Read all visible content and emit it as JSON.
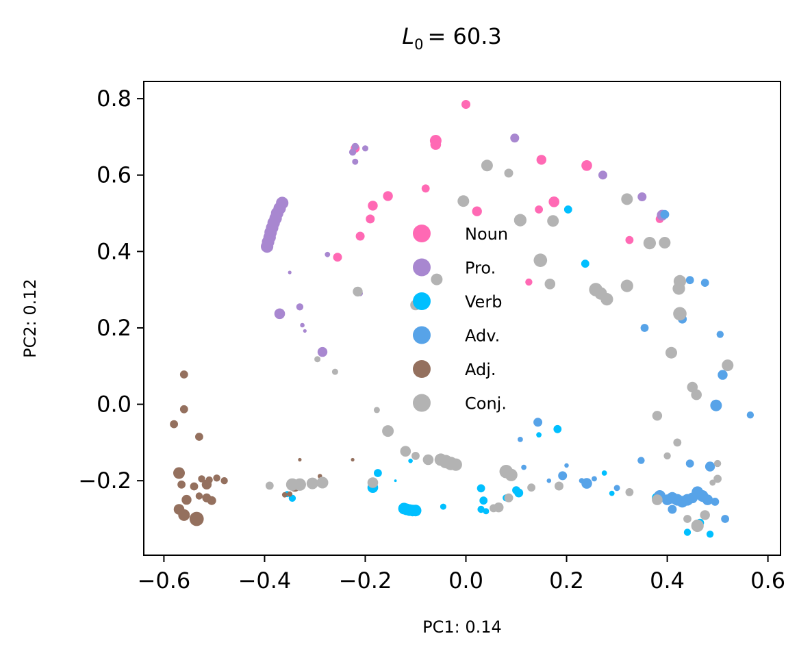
{
  "chart_data": {
    "type": "scatter",
    "title_prefix": "L",
    "title_subscript": "0",
    "title_value": "= 60.3",
    "xlabel": "PC1: 0.14",
    "ylabel": "PC2: 0.12",
    "xlim": [
      -0.64,
      0.625
    ],
    "ylim": [
      -0.395,
      0.845
    ],
    "xticks": [
      -0.6,
      -0.4,
      -0.2,
      0.0,
      0.2,
      0.4,
      0.6
    ],
    "yticks": [
      -0.2,
      0.0,
      0.2,
      0.4,
      0.6,
      0.8
    ],
    "xtick_labels": [
      "−0.6",
      "−0.4",
      "−0.2",
      "0.0",
      "0.2",
      "0.4",
      "0.6"
    ],
    "ytick_labels": [
      "−0.2",
      "0.0",
      "0.2",
      "0.4",
      "0.6",
      "0.8"
    ],
    "grid": false,
    "legend_position": "center",
    "series": [
      {
        "name": "Noun",
        "color": "#ff69b4",
        "points": [
          {
            "x": 0.0,
            "y": 0.785,
            "s": 1
          },
          {
            "x": -0.06,
            "y": 0.69,
            "s": 1.3
          },
          {
            "x": -0.06,
            "y": 0.68,
            "s": 1.2
          },
          {
            "x": -0.22,
            "y": 0.67,
            "s": 1
          },
          {
            "x": -0.08,
            "y": 0.565,
            "s": 0.9
          },
          {
            "x": 0.15,
            "y": 0.64,
            "s": 1.1
          },
          {
            "x": 0.24,
            "y": 0.625,
            "s": 1.2
          },
          {
            "x": -0.155,
            "y": 0.545,
            "s": 1.1
          },
          {
            "x": -0.185,
            "y": 0.52,
            "s": 1.1
          },
          {
            "x": -0.19,
            "y": 0.485,
            "s": 1
          },
          {
            "x": 0.022,
            "y": 0.505,
            "s": 1.1
          },
          {
            "x": 0.175,
            "y": 0.53,
            "s": 1.2
          },
          {
            "x": 0.145,
            "y": 0.51,
            "s": 0.9
          },
          {
            "x": -0.21,
            "y": 0.44,
            "s": 1
          },
          {
            "x": -0.255,
            "y": 0.385,
            "s": 1
          },
          {
            "x": 0.325,
            "y": 0.43,
            "s": 0.9
          },
          {
            "x": 0.385,
            "y": 0.485,
            "s": 0.9
          },
          {
            "x": 0.125,
            "y": 0.32,
            "s": 0.8
          }
        ]
      },
      {
        "name": "Pro.",
        "color": "#a887d0",
        "points": [
          {
            "x": 0.097,
            "y": 0.697,
            "s": 1
          },
          {
            "x": 0.272,
            "y": 0.6,
            "s": 1
          },
          {
            "x": 0.35,
            "y": 0.543,
            "s": 1
          },
          {
            "x": 0.39,
            "y": 0.495,
            "s": 1.2
          },
          {
            "x": -0.22,
            "y": 0.675,
            "s": 0.8
          },
          {
            "x": -0.2,
            "y": 0.67,
            "s": 0.7
          },
          {
            "x": -0.225,
            "y": 0.66,
            "s": 0.8
          },
          {
            "x": -0.22,
            "y": 0.635,
            "s": 0.7
          },
          {
            "x": -0.365,
            "y": 0.527,
            "s": 1.4
          },
          {
            "x": -0.37,
            "y": 0.513,
            "s": 1.4
          },
          {
            "x": -0.375,
            "y": 0.5,
            "s": 1.4
          },
          {
            "x": -0.378,
            "y": 0.487,
            "s": 1.4
          },
          {
            "x": -0.382,
            "y": 0.475,
            "s": 1.4
          },
          {
            "x": -0.385,
            "y": 0.462,
            "s": 1.4
          },
          {
            "x": -0.388,
            "y": 0.45,
            "s": 1.4
          },
          {
            "x": -0.39,
            "y": 0.437,
            "s": 1.4
          },
          {
            "x": -0.393,
            "y": 0.425,
            "s": 1.4
          },
          {
            "x": -0.395,
            "y": 0.413,
            "s": 1.4
          },
          {
            "x": -0.275,
            "y": 0.392,
            "s": 0.6
          },
          {
            "x": -0.35,
            "y": 0.345,
            "s": 0.4
          },
          {
            "x": -0.33,
            "y": 0.255,
            "s": 0.8
          },
          {
            "x": -0.37,
            "y": 0.237,
            "s": 1.2
          },
          {
            "x": -0.325,
            "y": 0.207,
            "s": 0.5
          },
          {
            "x": -0.32,
            "y": 0.192,
            "s": 0.4
          },
          {
            "x": -0.285,
            "y": 0.137,
            "s": 1.1
          },
          {
            "x": -0.21,
            "y": 0.29,
            "s": 0.6
          }
        ]
      },
      {
        "name": "Verb",
        "color": "#00bfff",
        "points": [
          {
            "x": 0.203,
            "y": 0.51,
            "s": 0.9
          },
          {
            "x": 0.237,
            "y": 0.368,
            "s": 0.9
          },
          {
            "x": -0.123,
            "y": -0.273,
            "s": 1.3
          },
          {
            "x": -0.118,
            "y": -0.275,
            "s": 1.3
          },
          {
            "x": -0.112,
            "y": -0.277,
            "s": 1.3
          },
          {
            "x": -0.106,
            "y": -0.278,
            "s": 1.3
          },
          {
            "x": -0.1,
            "y": -0.278,
            "s": 1.3
          },
          {
            "x": -0.185,
            "y": -0.218,
            "s": 1.2
          },
          {
            "x": -0.175,
            "y": -0.18,
            "s": 0.9
          },
          {
            "x": -0.345,
            "y": -0.246,
            "s": 0.8
          },
          {
            "x": -0.355,
            "y": -0.235,
            "s": 0.7
          },
          {
            "x": -0.11,
            "y": -0.148,
            "s": 0.5
          },
          {
            "x": -0.14,
            "y": -0.2,
            "s": 0.3
          },
          {
            "x": -0.045,
            "y": -0.268,
            "s": 0.7
          },
          {
            "x": 0.03,
            "y": -0.22,
            "s": 0.9
          },
          {
            "x": 0.035,
            "y": -0.252,
            "s": 0.9
          },
          {
            "x": 0.03,
            "y": -0.275,
            "s": 0.8
          },
          {
            "x": 0.04,
            "y": -0.28,
            "s": 0.7
          },
          {
            "x": 0.08,
            "y": -0.245,
            "s": 0.8
          },
          {
            "x": 0.105,
            "y": -0.232,
            "s": 1
          },
          {
            "x": 0.1,
            "y": -0.225,
            "s": 0.9
          },
          {
            "x": 0.145,
            "y": -0.08,
            "s": 0.6
          },
          {
            "x": 0.182,
            "y": -0.065,
            "s": 0.9
          },
          {
            "x": 0.275,
            "y": -0.18,
            "s": 0.6
          },
          {
            "x": 0.29,
            "y": -0.233,
            "s": 0.6
          },
          {
            "x": 0.38,
            "y": -0.245,
            "s": 1.2
          },
          {
            "x": 0.44,
            "y": -0.335,
            "s": 0.8
          },
          {
            "x": 0.485,
            "y": -0.34,
            "s": 0.8
          },
          {
            "x": 0.465,
            "y": -0.31,
            "s": 0.9
          }
        ]
      },
      {
        "name": "Adv.",
        "color": "#57a3e8",
        "points": [
          {
            "x": 0.395,
            "y": 0.497,
            "s": 1
          },
          {
            "x": 0.445,
            "y": 0.325,
            "s": 0.9
          },
          {
            "x": 0.475,
            "y": 0.318,
            "s": 0.9
          },
          {
            "x": 0.355,
            "y": 0.2,
            "s": 0.9
          },
          {
            "x": 0.43,
            "y": 0.223,
            "s": 1
          },
          {
            "x": 0.505,
            "y": 0.183,
            "s": 0.8
          },
          {
            "x": 0.51,
            "y": 0.077,
            "s": 1.1
          },
          {
            "x": 0.497,
            "y": -0.003,
            "s": 1.3
          },
          {
            "x": 0.565,
            "y": -0.028,
            "s": 0.8
          },
          {
            "x": 0.143,
            "y": -0.047,
            "s": 1
          },
          {
            "x": 0.108,
            "y": -0.092,
            "s": 0.6
          },
          {
            "x": 0.115,
            "y": -0.165,
            "s": 0.6
          },
          {
            "x": 0.192,
            "y": -0.187,
            "s": 1
          },
          {
            "x": 0.165,
            "y": -0.2,
            "s": 0.5
          },
          {
            "x": 0.23,
            "y": -0.2,
            "s": 0.6
          },
          {
            "x": 0.24,
            "y": -0.207,
            "s": 1.2
          },
          {
            "x": 0.3,
            "y": -0.219,
            "s": 0.7
          },
          {
            "x": 0.348,
            "y": -0.147,
            "s": 0.8
          },
          {
            "x": 0.2,
            "y": -0.16,
            "s": 0.5
          },
          {
            "x": 0.255,
            "y": -0.195,
            "s": 0.6
          },
          {
            "x": 0.445,
            "y": -0.155,
            "s": 0.9
          },
          {
            "x": 0.485,
            "y": -0.163,
            "s": 1.1
          },
          {
            "x": 0.515,
            "y": -0.3,
            "s": 0.9
          },
          {
            "x": 0.385,
            "y": -0.24,
            "s": 1.3
          },
          {
            "x": 0.4,
            "y": -0.25,
            "s": 1.2
          },
          {
            "x": 0.41,
            "y": -0.245,
            "s": 1.3
          },
          {
            "x": 0.42,
            "y": -0.25,
            "s": 1.3
          },
          {
            "x": 0.43,
            "y": -0.255,
            "s": 1.3
          },
          {
            "x": 0.44,
            "y": -0.25,
            "s": 1.3
          },
          {
            "x": 0.45,
            "y": -0.245,
            "s": 1.2
          },
          {
            "x": 0.46,
            "y": -0.23,
            "s": 1.3
          },
          {
            "x": 0.47,
            "y": -0.24,
            "s": 1.3
          },
          {
            "x": 0.48,
            "y": -0.25,
            "s": 1.2
          },
          {
            "x": 0.495,
            "y": -0.255,
            "s": 0.9
          },
          {
            "x": 0.41,
            "y": -0.275,
            "s": 1
          }
        ]
      },
      {
        "name": "Adj.",
        "color": "#94705e",
        "points": [
          {
            "x": -0.56,
            "y": 0.078,
            "s": 0.9
          },
          {
            "x": -0.56,
            "y": -0.013,
            "s": 0.9
          },
          {
            "x": -0.58,
            "y": -0.052,
            "s": 0.9
          },
          {
            "x": -0.53,
            "y": -0.085,
            "s": 0.9
          },
          {
            "x": -0.57,
            "y": -0.18,
            "s": 1.3
          },
          {
            "x": -0.525,
            "y": -0.195,
            "s": 0.8
          },
          {
            "x": -0.51,
            "y": -0.198,
            "s": 0.8
          },
          {
            "x": -0.495,
            "y": -0.193,
            "s": 0.8
          },
          {
            "x": -0.48,
            "y": -0.2,
            "s": 0.8
          },
          {
            "x": -0.515,
            "y": -0.21,
            "s": 1.1
          },
          {
            "x": -0.54,
            "y": -0.215,
            "s": 0.9
          },
          {
            "x": -0.565,
            "y": -0.21,
            "s": 0.9
          },
          {
            "x": -0.515,
            "y": -0.245,
            "s": 1
          },
          {
            "x": -0.505,
            "y": -0.252,
            "s": 1
          },
          {
            "x": -0.53,
            "y": -0.24,
            "s": 0.8
          },
          {
            "x": -0.555,
            "y": -0.25,
            "s": 1.1
          },
          {
            "x": -0.57,
            "y": -0.275,
            "s": 1.2
          },
          {
            "x": -0.56,
            "y": -0.29,
            "s": 1.3
          },
          {
            "x": -0.535,
            "y": -0.3,
            "s": 1.6
          },
          {
            "x": -0.34,
            "y": -0.215,
            "s": 1.2
          },
          {
            "x": -0.33,
            "y": -0.145,
            "s": 0.4
          },
          {
            "x": -0.225,
            "y": -0.145,
            "s": 0.4
          },
          {
            "x": -0.36,
            "y": -0.237,
            "s": 0.6
          },
          {
            "x": -0.35,
            "y": -0.235,
            "s": 0.6
          },
          {
            "x": -0.29,
            "y": -0.188,
            "s": 0.5
          }
        ]
      },
      {
        "name": "Conj.",
        "color": "#b3b3b3",
        "points": [
          {
            "x": 0.042,
            "y": 0.625,
            "s": 1.3
          },
          {
            "x": 0.085,
            "y": 0.605,
            "s": 1
          },
          {
            "x": -0.005,
            "y": 0.532,
            "s": 1.3
          },
          {
            "x": 0.108,
            "y": 0.482,
            "s": 1.4
          },
          {
            "x": 0.173,
            "y": 0.48,
            "s": 1.3
          },
          {
            "x": 0.32,
            "y": 0.537,
            "s": 1.3
          },
          {
            "x": 0.365,
            "y": 0.422,
            "s": 1.4
          },
          {
            "x": 0.395,
            "y": 0.423,
            "s": 1.3
          },
          {
            "x": 0.148,
            "y": 0.377,
            "s": 1.5
          },
          {
            "x": 0.167,
            "y": 0.315,
            "s": 1.2
          },
          {
            "x": -0.058,
            "y": 0.327,
            "s": 1.3
          },
          {
            "x": -0.215,
            "y": 0.295,
            "s": 1.1
          },
          {
            "x": -0.1,
            "y": 0.26,
            "s": 1.2
          },
          {
            "x": 0.258,
            "y": 0.3,
            "s": 1.5
          },
          {
            "x": 0.268,
            "y": 0.29,
            "s": 1.4
          },
          {
            "x": 0.28,
            "y": 0.275,
            "s": 1.4
          },
          {
            "x": 0.32,
            "y": 0.31,
            "s": 1.4
          },
          {
            "x": 0.425,
            "y": 0.322,
            "s": 1.4
          },
          {
            "x": 0.423,
            "y": 0.303,
            "s": 1.4
          },
          {
            "x": 0.425,
            "y": 0.237,
            "s": 1.5
          },
          {
            "x": 0.408,
            "y": 0.135,
            "s": 1.3
          },
          {
            "x": 0.52,
            "y": 0.102,
            "s": 1.3
          },
          {
            "x": 0.45,
            "y": 0.045,
            "s": 1.2
          },
          {
            "x": 0.458,
            "y": 0.025,
            "s": 1.2
          },
          {
            "x": 0.38,
            "y": -0.03,
            "s": 1.1
          },
          {
            "x": -0.295,
            "y": 0.118,
            "s": 0.7
          },
          {
            "x": -0.26,
            "y": 0.085,
            "s": 0.7
          },
          {
            "x": -0.177,
            "y": -0.015,
            "s": 0.7
          },
          {
            "x": -0.155,
            "y": -0.07,
            "s": 1.3
          },
          {
            "x": -0.12,
            "y": -0.123,
            "s": 1.2
          },
          {
            "x": -0.1,
            "y": -0.135,
            "s": 0.9
          },
          {
            "x": -0.075,
            "y": -0.145,
            "s": 1.2
          },
          {
            "x": -0.05,
            "y": -0.145,
            "s": 1.4
          },
          {
            "x": -0.04,
            "y": -0.15,
            "s": 1.5
          },
          {
            "x": -0.03,
            "y": -0.155,
            "s": 1.5
          },
          {
            "x": -0.02,
            "y": -0.158,
            "s": 1.4
          },
          {
            "x": -0.39,
            "y": -0.213,
            "s": 0.9
          },
          {
            "x": -0.345,
            "y": -0.21,
            "s": 1.4
          },
          {
            "x": -0.33,
            "y": -0.21,
            "s": 1.4
          },
          {
            "x": -0.305,
            "y": -0.207,
            "s": 1.3
          },
          {
            "x": -0.285,
            "y": -0.205,
            "s": 1.3
          },
          {
            "x": -0.185,
            "y": -0.205,
            "s": 1.2
          },
          {
            "x": 0.08,
            "y": -0.176,
            "s": 1.5
          },
          {
            "x": 0.09,
            "y": -0.185,
            "s": 1.4
          },
          {
            "x": 0.13,
            "y": -0.218,
            "s": 0.9
          },
          {
            "x": 0.185,
            "y": -0.214,
            "s": 1
          },
          {
            "x": 0.065,
            "y": -0.27,
            "s": 1.1
          },
          {
            "x": 0.055,
            "y": -0.272,
            "s": 0.9
          },
          {
            "x": 0.085,
            "y": -0.245,
            "s": 1
          },
          {
            "x": 0.325,
            "y": -0.23,
            "s": 0.9
          },
          {
            "x": 0.4,
            "y": -0.135,
            "s": 0.8
          },
          {
            "x": 0.42,
            "y": -0.1,
            "s": 0.9
          },
          {
            "x": 0.5,
            "y": -0.155,
            "s": 0.8
          },
          {
            "x": 0.5,
            "y": -0.195,
            "s": 0.9
          },
          {
            "x": 0.49,
            "y": -0.205,
            "s": 0.7
          },
          {
            "x": 0.38,
            "y": -0.25,
            "s": 1.2
          },
          {
            "x": 0.44,
            "y": -0.3,
            "s": 0.9
          },
          {
            "x": 0.475,
            "y": -0.29,
            "s": 1.1
          },
          {
            "x": 0.46,
            "y": -0.318,
            "s": 1.4
          }
        ]
      }
    ]
  }
}
